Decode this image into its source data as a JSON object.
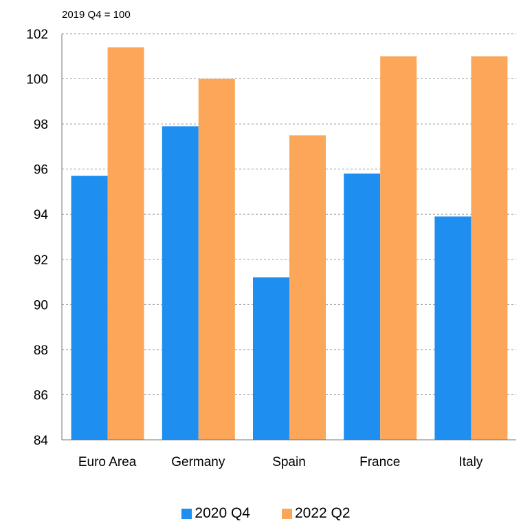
{
  "chart_data": {
    "type": "bar",
    "unit_label": "2019 Q4 = 100",
    "categories": [
      "Euro Area",
      "Germany",
      "Spain",
      "France",
      "Italy"
    ],
    "series": [
      {
        "name": "2020 Q4",
        "color": "#1f8ef1",
        "values": [
          95.7,
          97.9,
          91.2,
          95.8,
          93.9
        ]
      },
      {
        "name": "2022 Q2",
        "color": "#fca65a",
        "values": [
          101.4,
          100.0,
          97.5,
          101.0,
          101.0
        ]
      }
    ],
    "ylim": [
      84,
      102
    ],
    "yticks": [
      84,
      86,
      88,
      90,
      92,
      94,
      96,
      98,
      100,
      102
    ],
    "grid": true,
    "legend_position": "bottom"
  }
}
